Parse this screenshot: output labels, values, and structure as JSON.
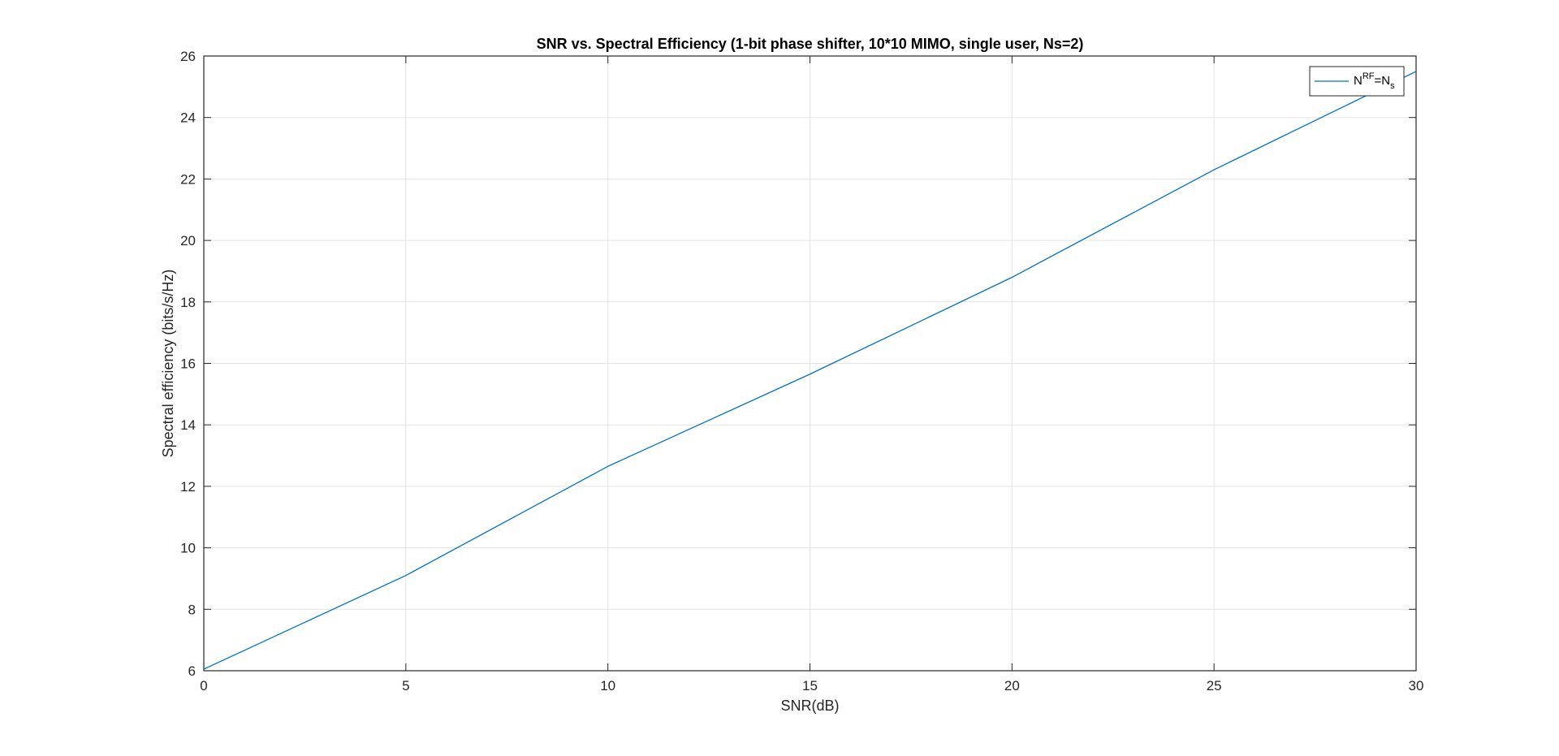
{
  "chart_data": {
    "type": "line",
    "title": "SNR vs. Spectral Efficiency (1-bit phase shifter, 10*10 MIMO, single user, Ns=2)",
    "xlabel": "SNR(dB)",
    "ylabel": "Spectral efficiency (bits/s/Hz)",
    "xlim": [
      0,
      30
    ],
    "ylim": [
      6,
      26
    ],
    "xticks": [
      0,
      5,
      10,
      15,
      20,
      25,
      30
    ],
    "yticks": [
      6,
      8,
      10,
      12,
      14,
      16,
      18,
      20,
      22,
      24,
      26
    ],
    "grid": true,
    "legend_position": "top-right",
    "series": [
      {
        "name": "N^{RF}=N_s",
        "legend": {
          "base": "N",
          "sup": "RF",
          "eq": "=N",
          "sub": "s"
        },
        "color": "#0072BD",
        "x": [
          0,
          5,
          10,
          15,
          20,
          25,
          30
        ],
        "y": [
          6.05,
          9.1,
          12.65,
          15.65,
          18.8,
          22.3,
          25.5
        ]
      }
    ]
  },
  "colors": {
    "axes": "#262626",
    "grid": "#e3e3e3",
    "series": "#0072BD"
  }
}
